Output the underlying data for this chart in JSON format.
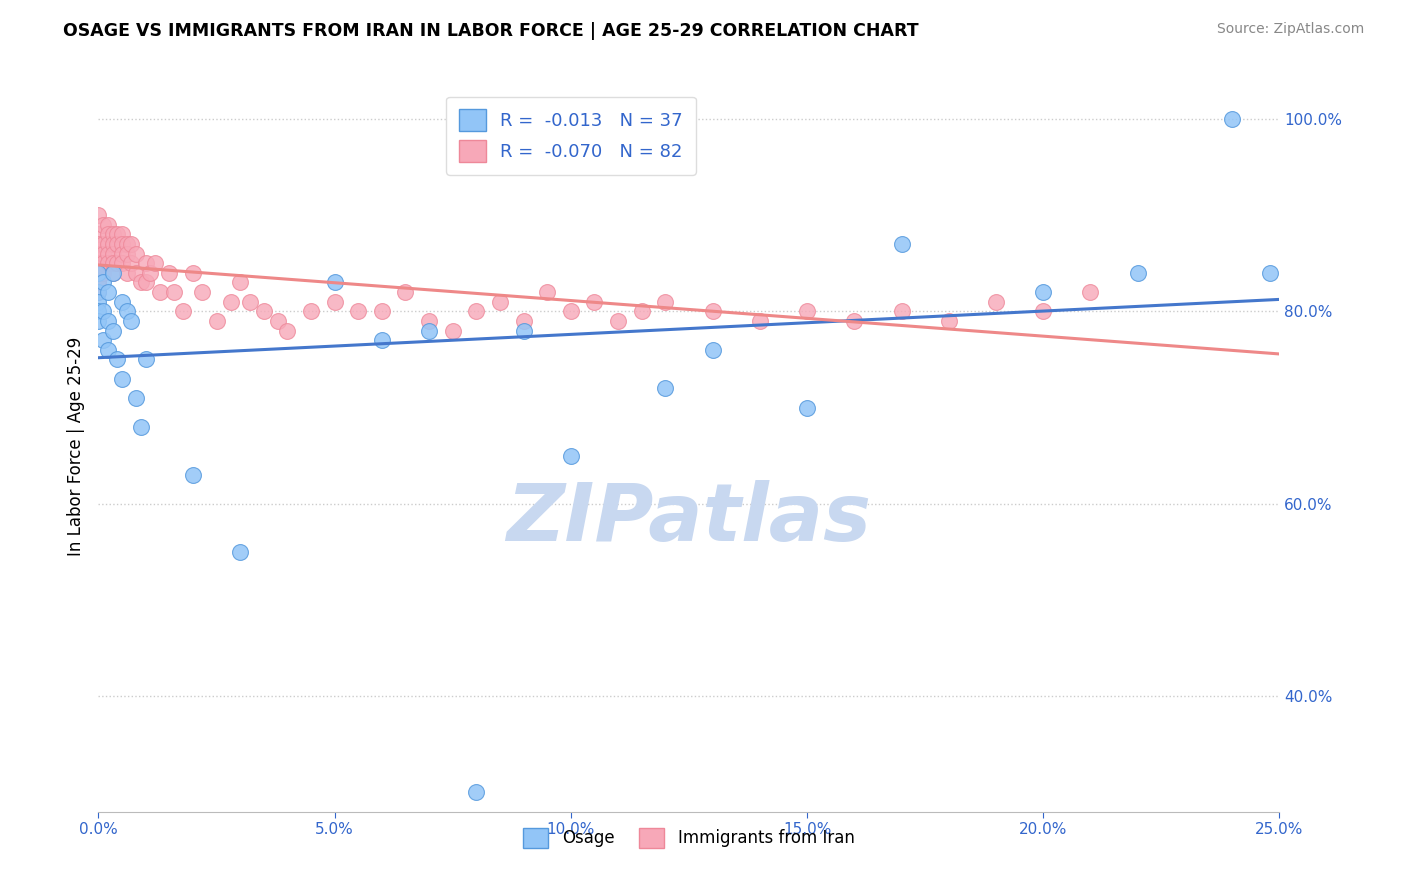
{
  "title": "OSAGE VS IMMIGRANTS FROM IRAN IN LABOR FORCE | AGE 25-29 CORRELATION CHART",
  "source": "Source: ZipAtlas.com",
  "ylabel": "In Labor Force | Age 25-29",
  "xlim": [
    0.0,
    0.25
  ],
  "ylim": [
    0.28,
    1.04
  ],
  "xtick_vals": [
    0.0,
    0.05,
    0.1,
    0.15,
    0.2,
    0.25
  ],
  "xtick_labels": [
    "0.0%",
    "5.0%",
    "10.0%",
    "15.0%",
    "20.0%",
    "25.0%"
  ],
  "ytick_vals": [
    0.4,
    0.6,
    0.8,
    1.0
  ],
  "ytick_labels": [
    "40.0%",
    "60.0%",
    "80.0%",
    "100.0%"
  ],
  "legend_labels": [
    "Osage",
    "Immigrants from Iran"
  ],
  "R_osage": -0.013,
  "N_osage": 37,
  "R_iran": -0.07,
  "N_iran": 82,
  "color_osage": "#92C5F7",
  "color_iran": "#F7A8B8",
  "color_edge_osage": "#5599DD",
  "color_edge_iran": "#EE8899",
  "color_line_osage": "#4477CC",
  "color_line_iran": "#EE8888",
  "watermark": "ZIPatlas",
  "watermark_color": "#C8D8F0",
  "osage_x": [
    0.0,
    0.0,
    0.0,
    0.0,
    0.0,
    0.001,
    0.001,
    0.001,
    0.002,
    0.002,
    0.002,
    0.003,
    0.003,
    0.004,
    0.005,
    0.005,
    0.006,
    0.007,
    0.008,
    0.009,
    0.01,
    0.02,
    0.03,
    0.05,
    0.06,
    0.07,
    0.08,
    0.09,
    0.1,
    0.12,
    0.13,
    0.15,
    0.17,
    0.2,
    0.22,
    0.24,
    0.248
  ],
  "osage_y": [
    0.82,
    0.84,
    0.81,
    0.8,
    0.79,
    0.83,
    0.8,
    0.77,
    0.82,
    0.79,
    0.76,
    0.84,
    0.78,
    0.75,
    0.81,
    0.73,
    0.8,
    0.79,
    0.71,
    0.68,
    0.75,
    0.63,
    0.55,
    0.83,
    0.77,
    0.78,
    0.3,
    0.78,
    0.65,
    0.72,
    0.76,
    0.7,
    0.87,
    0.82,
    0.84,
    1.0,
    0.84
  ],
  "iran_x": [
    0.0,
    0.0,
    0.0,
    0.0,
    0.0,
    0.0,
    0.0,
    0.0,
    0.0,
    0.0,
    0.001,
    0.001,
    0.001,
    0.001,
    0.001,
    0.002,
    0.002,
    0.002,
    0.002,
    0.002,
    0.003,
    0.003,
    0.003,
    0.003,
    0.003,
    0.004,
    0.004,
    0.004,
    0.005,
    0.005,
    0.005,
    0.005,
    0.006,
    0.006,
    0.006,
    0.007,
    0.007,
    0.008,
    0.008,
    0.009,
    0.01,
    0.01,
    0.011,
    0.012,
    0.013,
    0.015,
    0.016,
    0.018,
    0.02,
    0.022,
    0.025,
    0.028,
    0.03,
    0.032,
    0.035,
    0.038,
    0.04,
    0.045,
    0.05,
    0.055,
    0.06,
    0.065,
    0.07,
    0.075,
    0.08,
    0.085,
    0.09,
    0.095,
    0.1,
    0.105,
    0.11,
    0.115,
    0.12,
    0.13,
    0.14,
    0.15,
    0.16,
    0.17,
    0.18,
    0.19,
    0.2,
    0.21
  ],
  "iran_y": [
    0.9,
    0.88,
    0.87,
    0.86,
    0.85,
    0.84,
    0.84,
    0.83,
    0.83,
    0.82,
    0.89,
    0.87,
    0.86,
    0.85,
    0.84,
    0.89,
    0.88,
    0.87,
    0.86,
    0.85,
    0.88,
    0.87,
    0.86,
    0.85,
    0.84,
    0.88,
    0.87,
    0.85,
    0.88,
    0.87,
    0.86,
    0.85,
    0.87,
    0.86,
    0.84,
    0.87,
    0.85,
    0.86,
    0.84,
    0.83,
    0.85,
    0.83,
    0.84,
    0.85,
    0.82,
    0.84,
    0.82,
    0.8,
    0.84,
    0.82,
    0.79,
    0.81,
    0.83,
    0.81,
    0.8,
    0.79,
    0.78,
    0.8,
    0.81,
    0.8,
    0.8,
    0.82,
    0.79,
    0.78,
    0.8,
    0.81,
    0.79,
    0.82,
    0.8,
    0.81,
    0.79,
    0.8,
    0.81,
    0.8,
    0.79,
    0.8,
    0.79,
    0.8,
    0.79,
    0.81,
    0.8,
    0.82
  ]
}
